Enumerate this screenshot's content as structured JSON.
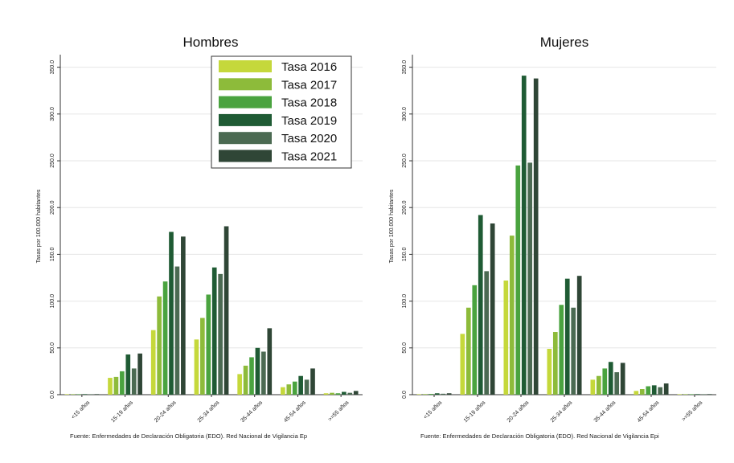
{
  "chart_data": [
    {
      "type": "bar",
      "title": "Hombres",
      "ylabel": "Tasas por 100.000 habitantes",
      "xlabel": "",
      "ylim": [
        0,
        360
      ],
      "yticks": [
        "0.0",
        "50.0",
        "100.0",
        "150.0",
        "200.0",
        "250.0",
        "300.0",
        "350.0"
      ],
      "categories": [
        "<15 años",
        "15-19 años",
        "20-24 años",
        "25-34 años",
        "35-44 años",
        "45-54 años",
        ">=55 años"
      ],
      "series": [
        {
          "name": "Tasa 2016",
          "values": [
            0.3,
            18,
            69,
            59,
            22,
            8,
            1.5
          ]
        },
        {
          "name": "Tasa 2017",
          "values": [
            0.3,
            19,
            105,
            82,
            31,
            11,
            2
          ]
        },
        {
          "name": "Tasa 2018",
          "values": [
            0.5,
            25,
            121,
            107,
            40,
            14,
            1.5
          ]
        },
        {
          "name": "Tasa 2019",
          "values": [
            0.6,
            43,
            174,
            136,
            50,
            20,
            3
          ]
        },
        {
          "name": "Tasa 2020",
          "values": [
            0.5,
            28,
            137,
            129,
            46,
            16,
            2
          ]
        },
        {
          "name": "Tasa 2021",
          "values": [
            0.6,
            44,
            169,
            180,
            71,
            28,
            4
          ]
        }
      ],
      "grid": true,
      "legend": "top-right",
      "source": "Fuente: Enfermedades de Declaración Obligatoria (EDO). Red Nacional de Vigilancia Ep"
    },
    {
      "type": "bar",
      "title": "Mujeres",
      "ylabel": "Tasas por 100.000 habitantes",
      "xlabel": "",
      "ylim": [
        0,
        360
      ],
      "yticks": [
        "0.0",
        "50.0",
        "100.0",
        "150.0",
        "200.0",
        "250.0",
        "300.0",
        "350.0"
      ],
      "categories": [
        "<15 años",
        "15-19 años",
        "20-24 años",
        "25-34 años",
        "35-44 años",
        "45-54 años",
        ">=55 años"
      ],
      "series": [
        {
          "name": "Tasa 2016",
          "values": [
            0.5,
            65,
            122,
            49,
            16,
            4,
            0.3
          ]
        },
        {
          "name": "Tasa 2017",
          "values": [
            0.6,
            93,
            170,
            67,
            20,
            6,
            0.3
          ]
        },
        {
          "name": "Tasa 2018",
          "values": [
            0.8,
            117,
            245,
            96,
            28,
            9,
            0.4
          ]
        },
        {
          "name": "Tasa 2019",
          "values": [
            1.5,
            192,
            341,
            124,
            35,
            10,
            0.6
          ]
        },
        {
          "name": "Tasa 2020",
          "values": [
            1,
            132,
            248,
            93,
            24,
            8,
            0.4
          ]
        },
        {
          "name": "Tasa 2021",
          "values": [
            1.5,
            183,
            338,
            127,
            34,
            12,
            0.6
          ]
        }
      ],
      "grid": true,
      "source": "Fuente: Enfermedades de Declaración Obligatoria (EDO). Red Nacional de Vigilancia Epi"
    }
  ],
  "colors": [
    "#c5d83b",
    "#8dbb3a",
    "#4aa33f",
    "#1f5b34",
    "#4b6a52",
    "#2f4636"
  ]
}
